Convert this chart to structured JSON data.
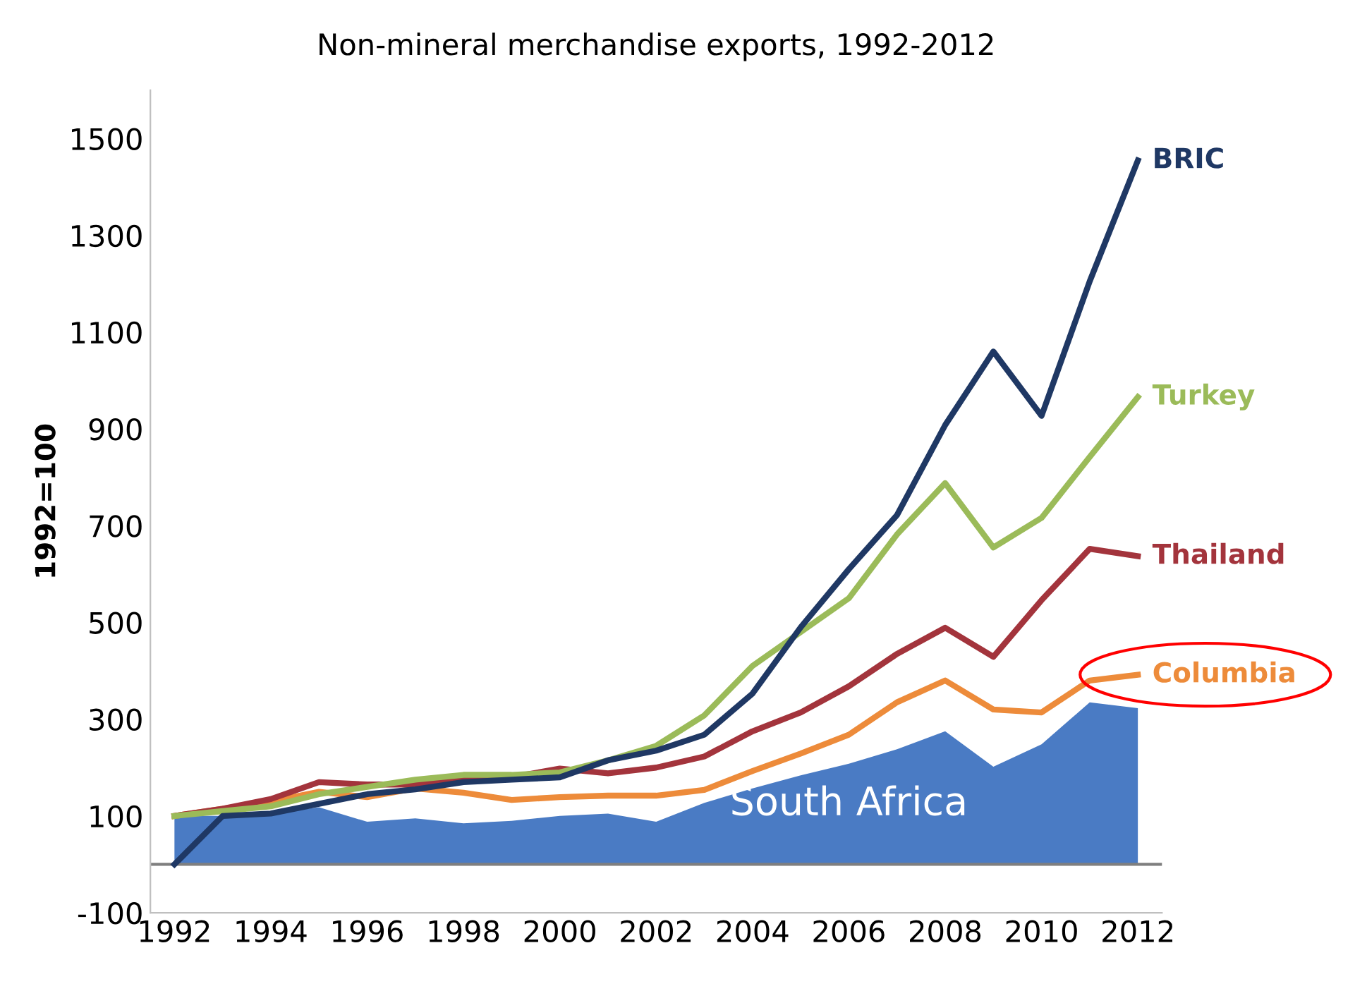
{
  "chart_data": {
    "type": "line",
    "title": "Non-mineral merchandise exports, 1992-2012",
    "ylabel": "1992=100",
    "x": [
      1992,
      1993,
      1994,
      1995,
      1996,
      1997,
      1998,
      1999,
      2000,
      2001,
      2002,
      2003,
      2004,
      2005,
      2006,
      2007,
      2008,
      2009,
      2010,
      2011,
      2012
    ],
    "series": [
      {
        "name": "South Africa",
        "type": "area",
        "color": "#4a7bc4",
        "values": [
          100,
          100,
          105,
          118,
          88,
          95,
          85,
          90,
          100,
          105,
          88,
          127,
          157,
          184,
          208,
          238,
          275,
          202,
          248,
          335,
          323
        ]
      },
      {
        "name": "Columbia",
        "color": "#ed8b3a",
        "values": [
          100,
          115,
          130,
          150,
          139,
          157,
          148,
          133,
          139,
          142,
          142,
          154,
          193,
          229,
          268,
          335,
          380,
          320,
          314,
          380,
          392
        ]
      },
      {
        "name": "Thailand",
        "color": "#a3343c",
        "values": [
          100,
          115,
          135,
          170,
          165,
          165,
          175,
          180,
          198,
          188,
          200,
          223,
          275,
          314,
          368,
          435,
          489,
          429,
          546,
          652,
          637
        ]
      },
      {
        "name": "Turkey",
        "color": "#9bbb59",
        "values": [
          100,
          110,
          120,
          145,
          160,
          175,
          185,
          185,
          190,
          215,
          245,
          308,
          410,
          480,
          550,
          682,
          788,
          655,
          716,
          842,
          966
        ]
      },
      {
        "name": "BRIC",
        "color": "#1f3864",
        "values": [
          0,
          100,
          105,
          125,
          145,
          155,
          170,
          175,
          180,
          215,
          235,
          268,
          353,
          490,
          610,
          722,
          908,
          1060,
          927,
          1205,
          1455
        ]
      }
    ],
    "xlim": [
      1991.5,
      2012.5
    ],
    "xticks": [
      1992,
      1994,
      1996,
      1998,
      2000,
      2002,
      2004,
      2006,
      2008,
      2010,
      2012
    ],
    "ylim": [
      -100,
      1600
    ],
    "yticks": [
      -100,
      100,
      300,
      500,
      700,
      900,
      1100,
      1300,
      1500
    ],
    "ref_lines": [
      {
        "axis": "y",
        "value": 0,
        "color": "#7f7f7f"
      }
    ],
    "grid": false,
    "legend": false
  }
}
